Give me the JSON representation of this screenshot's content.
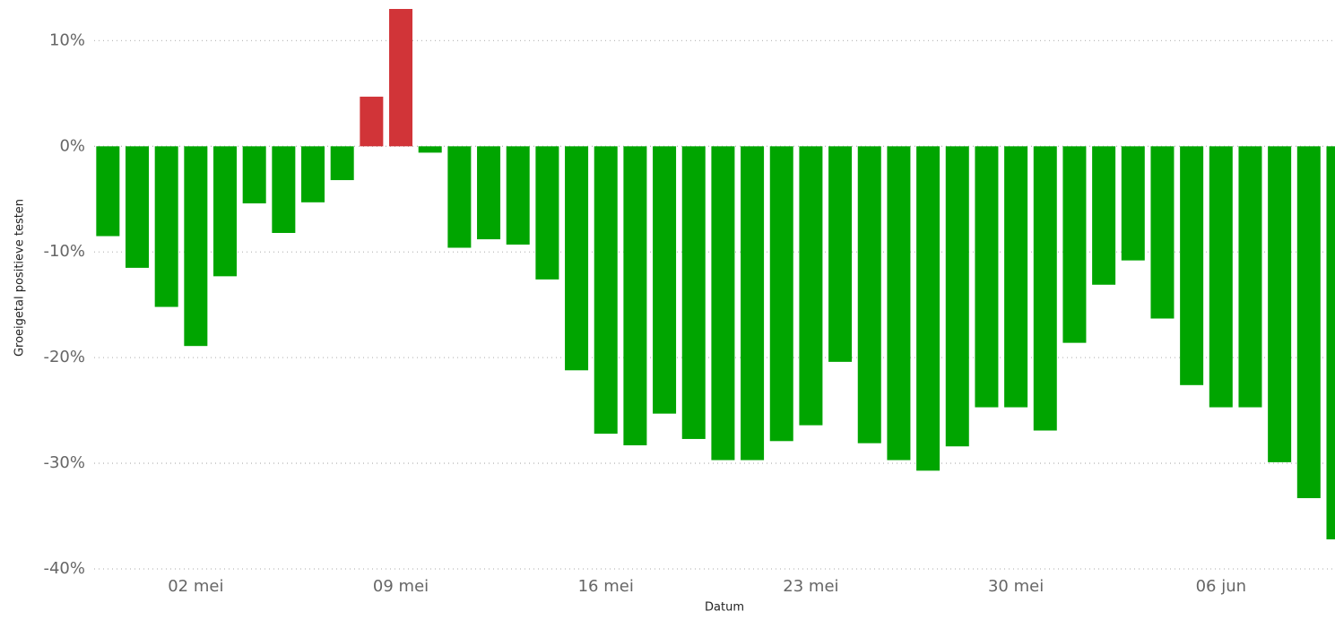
{
  "chart_data": {
    "type": "bar",
    "x_label": "Datum",
    "y_label": "Groeigetal positieve testen",
    "categories": [
      null,
      null,
      null,
      "02 mei",
      null,
      null,
      null,
      null,
      null,
      null,
      "09 mei",
      null,
      null,
      null,
      null,
      null,
      null,
      "16 mei",
      null,
      null,
      null,
      null,
      null,
      null,
      "23 mei",
      null,
      null,
      null,
      null,
      null,
      null,
      "30 mei",
      null,
      null,
      null,
      null,
      null,
      null,
      "06 jun",
      null,
      null,
      null,
      null
    ],
    "values": [
      -8.5,
      -11.5,
      -15.2,
      -18.9,
      -12.3,
      -5.4,
      -8.2,
      -5.3,
      -3.2,
      4.7,
      13,
      -0.6,
      -9.6,
      -8.8,
      -9.3,
      -12.6,
      -21.2,
      -27.2,
      -28.3,
      -25.3,
      -27.7,
      -29.7,
      -29.7,
      -27.9,
      -26.4,
      -20.4,
      -28.1,
      -29.7,
      -30.7,
      -28.4,
      -24.7,
      -24.7,
      -26.9,
      -18.6,
      -13.1,
      -10.8,
      -16.3,
      -22.6,
      -24.7,
      -24.7,
      -29.9,
      -33.3,
      -37.2
    ],
    "positive_color": "#d13438",
    "negative_color": "#00a500",
    "ylim": [
      -40,
      13
    ],
    "yticks": [
      {
        "value": -40,
        "label": "-40%"
      },
      {
        "value": -30,
        "label": "-30%"
      },
      {
        "value": -20,
        "label": "-20%"
      },
      {
        "value": -10,
        "label": "-10%"
      },
      {
        "value": 0,
        "label": "0%"
      },
      {
        "value": 10,
        "label": "10%"
      }
    ],
    "grid": true
  }
}
